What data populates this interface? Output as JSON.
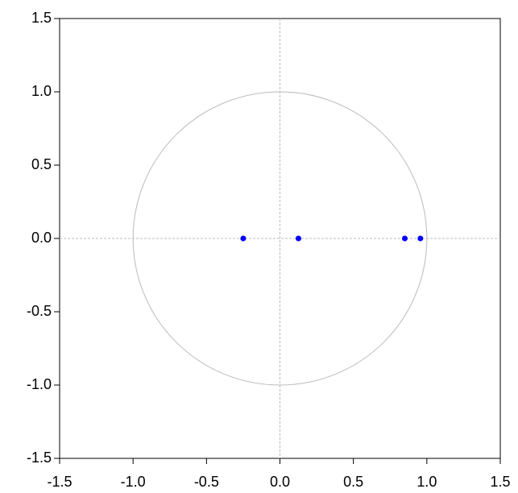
{
  "chart_data": {
    "type": "scatter",
    "x": [
      -0.25,
      0.126,
      0.85,
      0.956
    ],
    "values": [
      0,
      0,
      0,
      0
    ],
    "color": "#0000ff",
    "xlim": [
      -1.5,
      1.5
    ],
    "ylim": [
      -1.5,
      1.5
    ],
    "xticks": [
      -1.5,
      {
        "value": -1,
        "label": "-1.0"
      },
      -0.5,
      {
        "value": 0,
        "label": "0.0"
      },
      0.5,
      {
        "value": 1,
        "label": "1.0"
      },
      1.5
    ],
    "yticks": [
      -1.5,
      {
        "value": -1,
        "label": "-1.0"
      },
      -0.5,
      {
        "value": 0,
        "label": "0.0"
      },
      0.5,
      {
        "value": 1,
        "label": "1.0"
      },
      1.5
    ],
    "unit_circle": true,
    "zero_lines": true
  }
}
